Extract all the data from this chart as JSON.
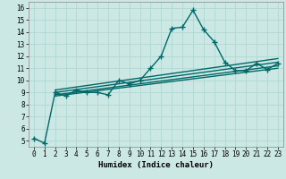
{
  "xlabel": "Humidex (Indice chaleur)",
  "bg_color": "#cce8e4",
  "grid_color": "#b0d8d4",
  "line_color": "#006868",
  "xlim": [
    -0.5,
    23.5
  ],
  "ylim": [
    4.5,
    16.5
  ],
  "xticks": [
    0,
    1,
    2,
    3,
    4,
    5,
    6,
    7,
    8,
    9,
    10,
    11,
    12,
    13,
    14,
    15,
    16,
    17,
    18,
    19,
    20,
    21,
    22,
    23
  ],
  "yticks": [
    5,
    6,
    7,
    8,
    9,
    10,
    11,
    12,
    13,
    14,
    15,
    16
  ],
  "series": [
    {
      "x": [
        0,
        1,
        2,
        3,
        4,
        5,
        6,
        7,
        8,
        9,
        10,
        11,
        12,
        13,
        14,
        15,
        16,
        17,
        18,
        19,
        20,
        21,
        22,
        23
      ],
      "y": [
        5.2,
        4.8,
        9.0,
        8.7,
        9.2,
        9.0,
        9.0,
        8.8,
        10.0,
        9.7,
        10.0,
        11.0,
        12.0,
        14.3,
        14.4,
        15.8,
        14.2,
        13.2,
        11.5,
        10.8,
        10.8,
        11.4,
        10.9,
        11.4
      ],
      "marker": "+",
      "ms": 4,
      "lw": 1.0
    },
    {
      "x": [
        2,
        23
      ],
      "y": [
        9.0,
        11.5
      ],
      "marker": null,
      "ms": 0,
      "lw": 1.0
    },
    {
      "x": [
        2,
        23
      ],
      "y": [
        8.8,
        11.2
      ],
      "marker": null,
      "ms": 0,
      "lw": 1.0
    },
    {
      "x": [
        2,
        23
      ],
      "y": [
        8.7,
        11.0
      ],
      "marker": null,
      "ms": 0,
      "lw": 1.0
    },
    {
      "x": [
        2,
        23
      ],
      "y": [
        9.2,
        11.8
      ],
      "marker": null,
      "ms": 0,
      "lw": 1.0
    }
  ]
}
